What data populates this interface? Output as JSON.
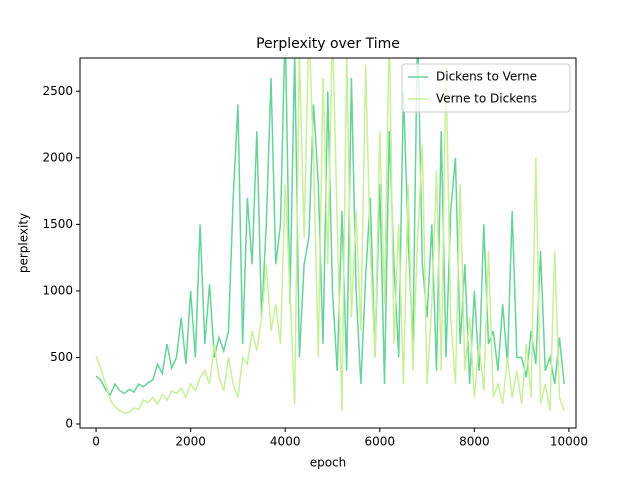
{
  "chart_data": {
    "type": "line",
    "title": "Perplexity over Time",
    "xlabel": "epoch",
    "ylabel": "perplexity",
    "x": [
      0,
      100,
      200,
      300,
      400,
      500,
      600,
      700,
      800,
      900,
      1000,
      1100,
      1200,
      1300,
      1400,
      1500,
      1600,
      1700,
      1800,
      1900,
      2000,
      2100,
      2200,
      2300,
      2400,
      2500,
      2600,
      2700,
      2800,
      2900,
      3000,
      3100,
      3200,
      3300,
      3400,
      3500,
      3600,
      3700,
      3800,
      3900,
      4000,
      4100,
      4200,
      4300,
      4400,
      4500,
      4600,
      4700,
      4800,
      4900,
      5000,
      5100,
      5200,
      5300,
      5400,
      5500,
      5600,
      5700,
      5800,
      5900,
      6000,
      6100,
      6200,
      6300,
      6400,
      6500,
      6600,
      6700,
      6800,
      6900,
      7000,
      7100,
      7200,
      7300,
      7400,
      7500,
      7600,
      7700,
      7800,
      7900,
      8000,
      8100,
      8200,
      8300,
      8400,
      8500,
      8600,
      8700,
      8800,
      8900,
      9000,
      9100,
      9200,
      9300,
      9400,
      9500,
      9600,
      9700,
      9800,
      9900
    ],
    "series": [
      {
        "name": "Dickens to Verne",
        "color": "#66d398",
        "values": [
          360,
          330,
          260,
          220,
          300,
          250,
          230,
          260,
          240,
          300,
          280,
          310,
          330,
          450,
          380,
          600,
          420,
          500,
          800,
          450,
          1000,
          500,
          1500,
          600,
          1050,
          500,
          650,
          550,
          700,
          1700,
          2400,
          600,
          1700,
          1200,
          2200,
          800,
          1500,
          2600,
          1200,
          1500,
          3000,
          900,
          2800,
          500,
          1200,
          1400,
          2400,
          1800,
          600,
          2500,
          1000,
          400,
          1600,
          400,
          2600,
          1000,
          300,
          1100,
          1700,
          500,
          1800,
          300,
          2200,
          1200,
          500,
          2500,
          1400,
          600,
          3000,
          1200,
          800,
          1500,
          400,
          2200,
          500,
          1600,
          2000,
          600,
          1200,
          300,
          1000,
          400,
          1500,
          600,
          700,
          400,
          900,
          450,
          1600,
          500,
          500,
          350,
          700,
          450,
          1300,
          400,
          500,
          300,
          650,
          300
        ]
      },
      {
        "name": "Verne to Dickens",
        "color": "#c8ef9a",
        "values": [
          510,
          420,
          300,
          180,
          130,
          100,
          80,
          90,
          120,
          110,
          180,
          160,
          200,
          150,
          220,
          180,
          250,
          230,
          270,
          200,
          300,
          250,
          350,
          400,
          300,
          600,
          350,
          250,
          500,
          300,
          200,
          500,
          450,
          700,
          550,
          800,
          1200,
          700,
          900,
          600,
          1800,
          1000,
          150,
          2800,
          1400,
          3000,
          2000,
          500,
          2600,
          1200,
          3000,
          1500,
          100,
          2800,
          800,
          1600,
          700,
          2700,
          1300,
          500,
          2200,
          900,
          3000,
          600,
          1500,
          300,
          1800,
          400,
          1400,
          2100,
          300,
          900,
          1900,
          400,
          2700,
          800,
          300,
          1800,
          400,
          800,
          200,
          600,
          250,
          1300,
          200,
          300,
          150,
          500,
          200,
          400,
          150,
          600,
          200,
          2000,
          150,
          300,
          100,
          1300,
          200,
          100
        ]
      }
    ],
    "xlim": [
      -340,
      10150
    ],
    "ylim": [
      -30,
      2750
    ],
    "xticks": [
      0,
      2000,
      4000,
      6000,
      8000,
      10000
    ],
    "yticks": [
      0,
      500,
      1000,
      1500,
      2000,
      2500
    ],
    "legend": "upper right"
  }
}
